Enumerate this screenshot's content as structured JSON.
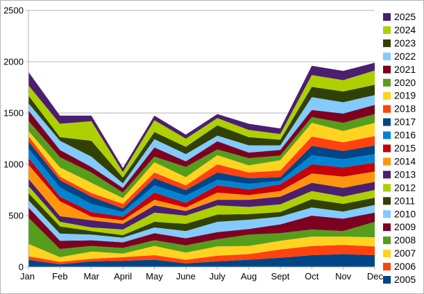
{
  "window": {
    "background": "#ffffff",
    "border_color": "#b3b3b3"
  },
  "chart_data": {
    "type": "area",
    "stacked": true,
    "title": "",
    "xlabel": "",
    "ylabel": "",
    "grid": true,
    "gridline_color": "#b3b3b3",
    "axis_color": "#b3b3b3",
    "legend_position": "right",
    "ylim": [
      0,
      2500
    ],
    "y_ticks": [
      "0",
      "500",
      "1000",
      "1500",
      "2000",
      "2500"
    ],
    "categories": [
      "Jan",
      "Feb",
      "Mar",
      "April",
      "May",
      "June",
      "July",
      "Aug",
      "Sept",
      "Oct",
      "Nov",
      "Dec"
    ],
    "series": [
      {
        "name": "2005",
        "color": "#004586",
        "values": [
          70,
          25,
          55,
          60,
          70,
          35,
          55,
          70,
          90,
          115,
          125,
          115
        ]
      },
      {
        "name": "2006",
        "color": "#ff420e",
        "values": [
          35,
          25,
          25,
          35,
          45,
          35,
          55,
          55,
          80,
          90,
          90,
          85
        ]
      },
      {
        "name": "2007",
        "color": "#ffd320",
        "values": [
          120,
          45,
          70,
          35,
          90,
          70,
          90,
          80,
          85,
          90,
          80,
          90
        ]
      },
      {
        "name": "2008",
        "color": "#579d1c",
        "values": [
          255,
          80,
          55,
          55,
          55,
          70,
          70,
          110,
          75,
          70,
          55,
          150
        ]
      },
      {
        "name": "2009",
        "color": "#7e0021",
        "values": [
          100,
          80,
          55,
          55,
          70,
          70,
          70,
          55,
          85,
          135,
          120,
          90
        ]
      },
      {
        "name": "2010",
        "color": "#83caff",
        "values": [
          70,
          70,
          55,
          45,
          55,
          70,
          100,
          90,
          75,
          80,
          70,
          75
        ]
      },
      {
        "name": "2011",
        "color": "#314004",
        "values": [
          70,
          70,
          35,
          25,
          55,
          70,
          70,
          55,
          45,
          80,
          75,
          70
        ]
      },
      {
        "name": "2012",
        "color": "#aecf00",
        "values": [
          70,
          45,
          35,
          55,
          90,
          80,
          90,
          70,
          75,
          80,
          70,
          75
        ]
      },
      {
        "name": "2013",
        "color": "#4b1f6f",
        "values": [
          70,
          55,
          70,
          55,
          70,
          45,
          55,
          70,
          75,
          80,
          85,
          80
        ]
      },
      {
        "name": "2014",
        "color": "#ff950e",
        "values": [
          135,
          145,
          35,
          35,
          55,
          35,
          70,
          45,
          55,
          90,
          110,
          100
        ]
      },
      {
        "name": "2015",
        "color": "#c5000b",
        "values": [
          70,
          45,
          45,
          35,
          70,
          45,
          70,
          55,
          65,
          90,
          90,
          85
        ]
      },
      {
        "name": "2016",
        "color": "#0084d1",
        "values": [
          90,
          90,
          80,
          45,
          70,
          70,
          55,
          55,
          35,
          90,
          80,
          85
        ]
      },
      {
        "name": "2017",
        "color": "#004586",
        "values": [
          70,
          70,
          70,
          35,
          70,
          55,
          70,
          55,
          35,
          90,
          80,
          85
        ]
      },
      {
        "name": "2018",
        "color": "#ff420e",
        "values": [
          50,
          35,
          35,
          45,
          55,
          45,
          80,
          55,
          65,
          90,
          85,
          90
        ]
      },
      {
        "name": "2019",
        "color": "#ffd320",
        "values": [
          50,
          90,
          100,
          55,
          100,
          80,
          90,
          70,
          100,
          135,
          110,
          130
        ]
      },
      {
        "name": "2020",
        "color": "#579d1c",
        "values": [
          100,
          100,
          100,
          55,
          55,
          100,
          55,
          70,
          45,
          55,
          80,
          85
        ]
      },
      {
        "name": "2021",
        "color": "#7e0021",
        "values": [
          100,
          70,
          55,
          45,
          90,
          55,
          80,
          55,
          55,
          70,
          90,
          90
        ]
      },
      {
        "name": "2022",
        "color": "#83caff",
        "values": [
          70,
          90,
          100,
          45,
          80,
          70,
          55,
          70,
          45,
          125,
          110,
          95
        ]
      },
      {
        "name": "2023",
        "color": "#314004",
        "values": [
          75,
          35,
          155,
          55,
          70,
          70,
          100,
          80,
          55,
          100,
          105,
          100
        ]
      },
      {
        "name": "2024",
        "color": "#aecf00",
        "values": [
          100,
          130,
          190,
          55,
          115,
          80,
          70,
          70,
          55,
          115,
          110,
          140
        ]
      },
      {
        "name": "2025",
        "color": "#4b1f6f",
        "values": [
          130,
          80,
          55,
          40,
          45,
          40,
          40,
          60,
          55,
          90,
          90,
          75
        ]
      }
    ],
    "legend_labels_top_to_bottom": [
      "2025",
      "2024",
      "2023",
      "2022",
      "2021",
      "2020",
      "2019",
      "2018",
      "2017",
      "2016",
      "2015",
      "2014",
      "2013",
      "2012",
      "2011",
      "2010",
      "2009",
      "2008",
      "2007",
      "2006",
      "2005"
    ]
  },
  "layout_note": "stacked area chart, months Jan-Dec, yearly series 2005-2025, legend on right"
}
